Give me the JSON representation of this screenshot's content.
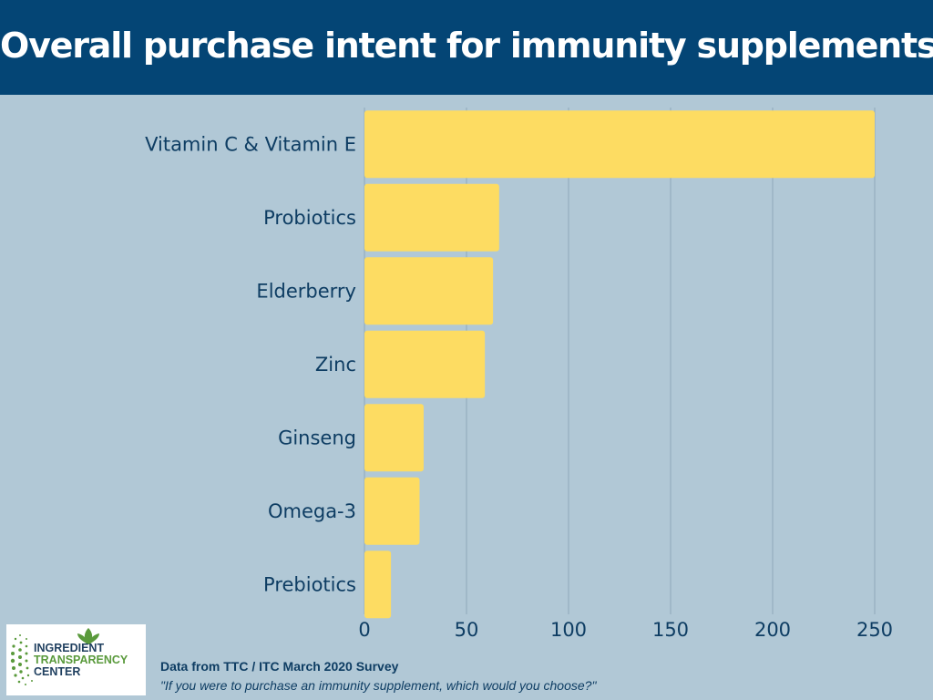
{
  "header": {
    "title": "Overall purchase intent for immunity supplements:"
  },
  "chart_data": {
    "type": "bar",
    "orientation": "horizontal",
    "title": "Overall purchase intent for immunity supplements:",
    "categories": [
      "Vitamin C & Vitamin E",
      "Probiotics",
      "Elderberry",
      "Zinc",
      "Ginseng",
      "Omega-3",
      "Prebiotics"
    ],
    "values": [
      250,
      66,
      63,
      59,
      29,
      27,
      13
    ],
    "xlim": [
      0,
      250
    ],
    "xticks": [
      0,
      50,
      100,
      150,
      200,
      250
    ],
    "grid": true,
    "bar_color": "#fddc62",
    "grid_color": "#8fa9b9"
  },
  "logo": {
    "line1": "INGREDIENT",
    "line2": "TRANSPARENCY",
    "line3": "CENTER",
    "leaf_icon": "leaf-icon"
  },
  "footer": {
    "source": "Data from TTC / ITC March 2020 Survey",
    "quote": "\"If you were to purchase an immunity supplement, which would you choose?\""
  },
  "colors": {
    "header_bg": "#044575",
    "page_bg": "#b1c8d6",
    "text_dark": "#0e3d63",
    "logo_green": "#5a9a3c"
  }
}
